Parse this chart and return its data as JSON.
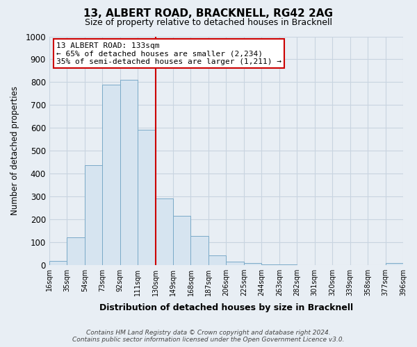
{
  "title": "13, ALBERT ROAD, BRACKNELL, RG42 2AG",
  "subtitle": "Size of property relative to detached houses in Bracknell",
  "xlabel": "Distribution of detached houses by size in Bracknell",
  "ylabel": "Number of detached properties",
  "bar_labels": [
    "16sqm",
    "35sqm",
    "54sqm",
    "73sqm",
    "92sqm",
    "111sqm",
    "130sqm",
    "149sqm",
    "168sqm",
    "187sqm",
    "206sqm",
    "225sqm",
    "244sqm",
    "263sqm",
    "282sqm",
    "301sqm",
    "320sqm",
    "339sqm",
    "358sqm",
    "377sqm",
    "396sqm"
  ],
  "bar_values": [
    18,
    120,
    435,
    790,
    810,
    590,
    290,
    213,
    125,
    40,
    15,
    7,
    3,
    2,
    0,
    0,
    0,
    0,
    0,
    8
  ],
  "bar_color": "#d6e4f0",
  "bar_edge_color": "#7aaac8",
  "vline_index": 6,
  "vline_color": "#cc0000",
  "ylim": [
    0,
    1000
  ],
  "yticks": [
    0,
    100,
    200,
    300,
    400,
    500,
    600,
    700,
    800,
    900,
    1000
  ],
  "annotation_title": "13 ALBERT ROAD: 133sqm",
  "annotation_line1": "← 65% of detached houses are smaller (2,234)",
  "annotation_line2": "35% of semi-detached houses are larger (1,211) →",
  "annotation_box_color": "#ffffff",
  "annotation_box_edge": "#cc0000",
  "footer_line1": "Contains HM Land Registry data © Crown copyright and database right 2024.",
  "footer_line2": "Contains public sector information licensed under the Open Government Licence v3.0.",
  "background_color": "#e8eef4",
  "plot_bg_color": "#e8eef4",
  "grid_color": "#c8d4e0"
}
